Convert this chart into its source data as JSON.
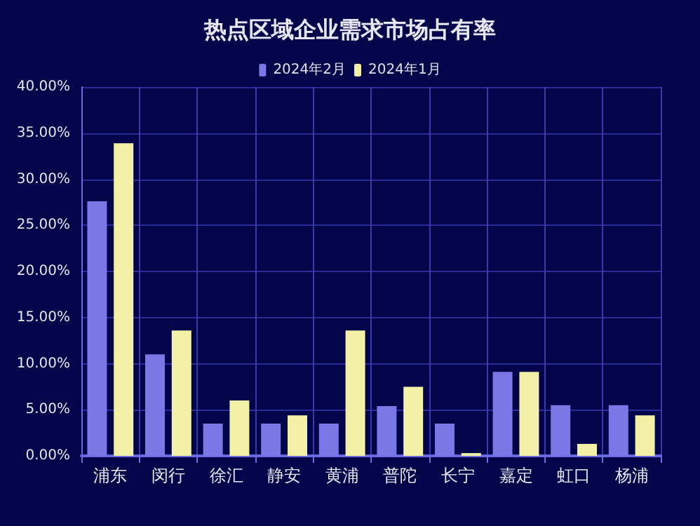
{
  "chart_data": {
    "type": "bar",
    "title": "热点区域企业需求市场占有率",
    "categories": [
      "浦东",
      "闵行",
      "徐汇",
      "静安",
      "黄浦",
      "普陀",
      "长宁",
      "嘉定",
      "虹口",
      "杨浦"
    ],
    "series": [
      {
        "name": "2024年2月",
        "color": "#7a78e6",
        "values": [
          27.6,
          11.0,
          3.5,
          3.5,
          3.5,
          5.4,
          3.5,
          9.1,
          5.5,
          5.5
        ]
      },
      {
        "name": "2024年1月",
        "color": "#f2f0a6",
        "values": [
          33.9,
          13.6,
          6.0,
          4.4,
          13.6,
          7.5,
          0.3,
          9.1,
          1.3,
          4.4
        ]
      }
    ],
    "ylim": [
      0,
      40
    ],
    "yticks": [
      {
        "value": 0,
        "label": "0.00%"
      },
      {
        "value": 5,
        "label": "5.00%"
      },
      {
        "value": 10,
        "label": "10.00%"
      },
      {
        "value": 15,
        "label": "15.00%"
      },
      {
        "value": 20,
        "label": "20.00%"
      },
      {
        "value": 25,
        "label": "25.00%"
      },
      {
        "value": 30,
        "label": "30.00%"
      },
      {
        "value": 35,
        "label": "35.00%"
      },
      {
        "value": 40,
        "label": "40.00%"
      }
    ],
    "grid": true,
    "legend": "top"
  }
}
